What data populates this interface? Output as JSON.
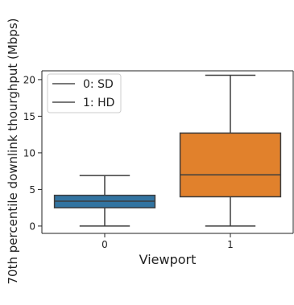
{
  "chart_data": {
    "type": "box",
    "xlabel": "Viewport",
    "ylabel": "70th percentile downlink thourghput (Mbps)",
    "categories": [
      "0",
      "1"
    ],
    "ylim": [
      -1,
      21.2
    ],
    "yticks": [
      0,
      5,
      10,
      15,
      20
    ],
    "grid": false,
    "legend": {
      "placement": "upper-left",
      "entries": [
        "0: SD",
        "1: HD"
      ]
    },
    "series": [
      {
        "category": "0",
        "color": "#3274a1",
        "whisker_low": 0.0,
        "q1": 2.5,
        "median": 3.4,
        "q3": 4.2,
        "whisker_high": 6.9
      },
      {
        "category": "1",
        "color": "#e1812c",
        "whisker_low": 0.0,
        "q1": 4.0,
        "median": 7.0,
        "q3": 12.7,
        "whisker_high": 20.6
      }
    ]
  }
}
